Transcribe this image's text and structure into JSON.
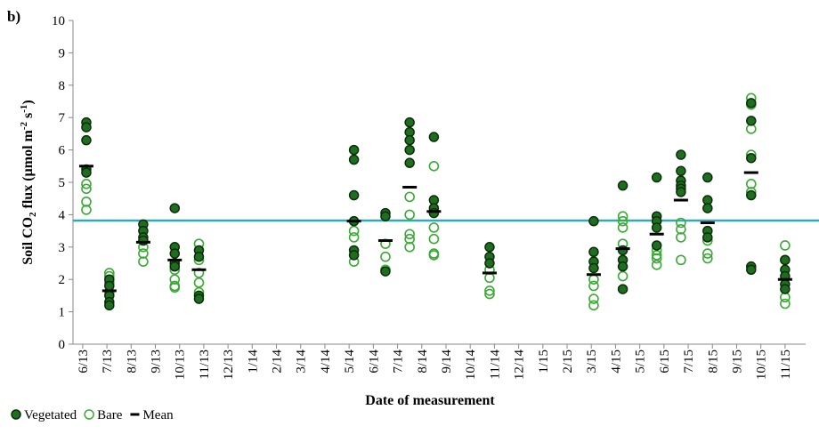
{
  "chart_data": {
    "type": "scatter",
    "panel_label": "b)",
    "ylabel_parts": [
      "Soil CO",
      "2",
      " flux (µmol m",
      "-2",
      " s",
      "-1",
      ")"
    ],
    "xlabel": "Date of measurement",
    "xlim": [
      -0.4,
      29.85
    ],
    "ylim": [
      0,
      10
    ],
    "yticks": [
      0,
      1,
      2,
      3,
      4,
      5,
      6,
      7,
      8,
      9,
      10
    ],
    "xticks": [
      {
        "value": 0,
        "label": "6/13"
      },
      {
        "value": 1,
        "label": "7/13"
      },
      {
        "value": 2,
        "label": "8/13"
      },
      {
        "value": 3,
        "label": "9/13"
      },
      {
        "value": 4,
        "label": "10/13"
      },
      {
        "value": 5,
        "label": "11/13"
      },
      {
        "value": 6,
        "label": "12/13"
      },
      {
        "value": 7,
        "label": "1/14"
      },
      {
        "value": 8,
        "label": "2/14"
      },
      {
        "value": 9,
        "label": "3/14"
      },
      {
        "value": 10,
        "label": "4/14"
      },
      {
        "value": 11,
        "label": "5/14"
      },
      {
        "value": 12,
        "label": "6/14"
      },
      {
        "value": 13,
        "label": "7/14"
      },
      {
        "value": 14,
        "label": "8/14"
      },
      {
        "value": 15,
        "label": "9/14"
      },
      {
        "value": 16,
        "label": "10/14"
      },
      {
        "value": 17,
        "label": "11/14"
      },
      {
        "value": 18,
        "label": "12/14"
      },
      {
        "value": 19,
        "label": "1/15"
      },
      {
        "value": 20,
        "label": "2/15"
      },
      {
        "value": 21,
        "label": "3/15"
      },
      {
        "value": 22,
        "label": "4/15"
      },
      {
        "value": 23,
        "label": "5/15"
      },
      {
        "value": 24,
        "label": "6/15"
      },
      {
        "value": 25,
        "label": "7/15"
      },
      {
        "value": 26,
        "label": "8/15"
      },
      {
        "value": 27,
        "label": "9/15"
      },
      {
        "value": 28,
        "label": "10/15"
      },
      {
        "value": 29,
        "label": "11/15"
      }
    ],
    "reference_line": {
      "value": 3.82,
      "color": "#31a9b8"
    },
    "series": [
      {
        "name": "Vegetated",
        "marker": "filled",
        "color": "#1f6e1f",
        "x": [
          0.15,
          0.15,
          0.15,
          0.15,
          0.15,
          1.1,
          1.1,
          1.1,
          1.1,
          1.1,
          2.5,
          2.5,
          2.5,
          2.5,
          3.8,
          3.8,
          3.8,
          3.8,
          3.8,
          4.8,
          4.8,
          4.8,
          4.8,
          11.2,
          11.2,
          11.2,
          11.2,
          11.2,
          11.2,
          12.5,
          12.5,
          12.5,
          13.5,
          13.5,
          13.5,
          13.5,
          13.5,
          14.5,
          14.5,
          14.5,
          14.5,
          16.8,
          16.8,
          16.8,
          21.1,
          21.1,
          21.1,
          21.1,
          22.3,
          22.3,
          22.3,
          22.3,
          22.3,
          23.7,
          23.7,
          23.7,
          23.7,
          23.7,
          24.7,
          24.7,
          24.7,
          24.7,
          24.7,
          24.7,
          25.8,
          25.8,
          25.8,
          25.8,
          25.8,
          27.6,
          27.6,
          27.6,
          27.6,
          27.6,
          27.6,
          29.0,
          29.0,
          29.0,
          29.0,
          29.0
        ],
        "values": [
          6.85,
          6.7,
          6.3,
          5.4,
          5.3,
          2.0,
          1.8,
          1.5,
          1.3,
          1.2,
          3.7,
          3.5,
          3.3,
          3.2,
          4.2,
          3.0,
          2.8,
          2.5,
          2.4,
          2.9,
          2.7,
          1.5,
          1.4,
          6.0,
          5.7,
          4.6,
          3.8,
          2.9,
          2.75,
          4.05,
          3.95,
          2.25,
          6.85,
          6.55,
          6.3,
          6.0,
          5.6,
          6.4,
          4.45,
          4.2,
          4.05,
          3.0,
          2.7,
          2.5,
          3.8,
          2.85,
          2.55,
          2.35,
          4.9,
          2.9,
          2.6,
          2.4,
          1.7,
          5.15,
          3.95,
          3.8,
          3.6,
          3.05,
          5.85,
          5.35,
          5.05,
          4.9,
          4.8,
          4.7,
          5.15,
          4.45,
          4.2,
          3.5,
          3.3,
          7.45,
          6.9,
          5.75,
          4.6,
          2.4,
          2.3,
          2.6,
          2.3,
          2.1,
          1.85,
          1.7
        ]
      },
      {
        "name": "Bare",
        "marker": "open",
        "color": "#3aaa35",
        "x": [
          0.15,
          0.15,
          0.15,
          0.15,
          1.1,
          1.1,
          1.1,
          1.1,
          2.5,
          2.5,
          2.5,
          3.8,
          3.8,
          3.8,
          3.8,
          4.8,
          4.8,
          4.8,
          4.8,
          4.8,
          11.2,
          11.2,
          11.2,
          12.5,
          12.5,
          12.5,
          13.5,
          13.5,
          13.5,
          13.5,
          13.5,
          14.5,
          14.5,
          14.5,
          14.5,
          14.5,
          16.8,
          16.8,
          16.8,
          16.8,
          21.1,
          21.1,
          21.1,
          21.1,
          22.3,
          22.3,
          22.3,
          22.3,
          22.3,
          23.7,
          23.7,
          23.7,
          23.7,
          24.7,
          24.7,
          24.7,
          24.7,
          25.8,
          25.8,
          25.8,
          27.6,
          27.6,
          27.6,
          27.6,
          27.6,
          27.6,
          29.0,
          29.0,
          29.0,
          29.0
        ],
        "values": [
          4.95,
          4.8,
          4.4,
          4.15,
          2.2,
          2.1,
          1.9,
          1.6,
          3.0,
          2.8,
          2.55,
          2.3,
          2.0,
          1.8,
          1.75,
          3.1,
          2.6,
          2.2,
          1.9,
          1.6,
          3.5,
          3.3,
          2.55,
          3.1,
          2.7,
          2.3,
          4.55,
          4.0,
          3.4,
          3.25,
          3.0,
          5.5,
          3.6,
          3.25,
          2.8,
          2.75,
          2.3,
          2.05,
          1.65,
          1.55,
          2.0,
          1.8,
          1.4,
          1.2,
          3.95,
          3.8,
          3.6,
          3.1,
          2.1,
          2.9,
          2.75,
          2.65,
          2.45,
          3.75,
          3.55,
          3.3,
          2.6,
          3.2,
          2.8,
          2.65,
          7.6,
          7.4,
          6.65,
          5.85,
          4.95,
          4.7,
          3.05,
          2.6,
          1.45,
          1.25
        ]
      },
      {
        "name": "Mean",
        "marker": "dash",
        "color": "#000000",
        "x": [
          0.15,
          1.1,
          2.5,
          3.8,
          4.8,
          11.2,
          12.5,
          13.5,
          14.5,
          16.8,
          21.1,
          22.3,
          23.7,
          24.7,
          25.8,
          27.6,
          29.0
        ],
        "values": [
          5.5,
          1.65,
          3.15,
          2.6,
          2.3,
          3.8,
          3.2,
          4.85,
          4.1,
          2.2,
          2.15,
          2.95,
          3.4,
          4.45,
          3.75,
          5.3,
          2.0
        ]
      }
    ]
  }
}
